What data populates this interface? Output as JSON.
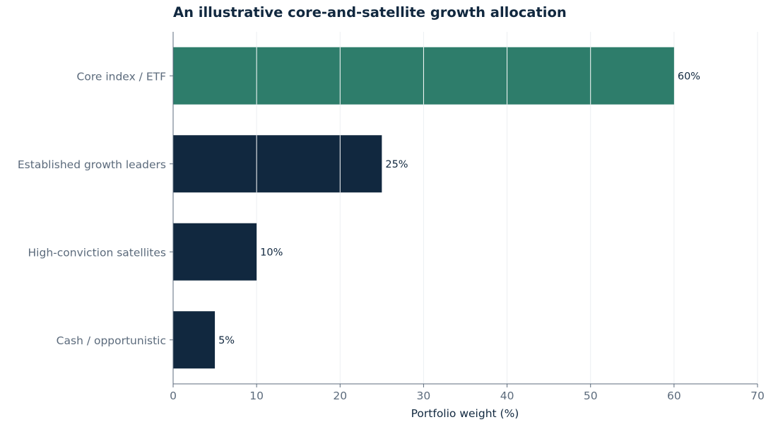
{
  "chart_data": {
    "type": "bar",
    "orientation": "horizontal",
    "title": "An illustrative core-and-satellite growth allocation",
    "xlabel": "Portfolio weight (%)",
    "ylabel": "",
    "xlim": [
      0,
      70
    ],
    "x_ticks": [
      0,
      10,
      20,
      30,
      40,
      50,
      60,
      70
    ],
    "categories": [
      "Core index / ETF",
      "Established growth leaders",
      "High-conviction satellites",
      "Cash / opportunistic"
    ],
    "values": [
      60,
      25,
      10,
      5
    ],
    "data_labels": [
      "60%",
      "25%",
      "10%",
      "5%"
    ],
    "bar_colors": [
      "#2e7d6b",
      "#11283f",
      "#11283f",
      "#11283f"
    ],
    "grid": "vertical",
    "legend": "none"
  }
}
